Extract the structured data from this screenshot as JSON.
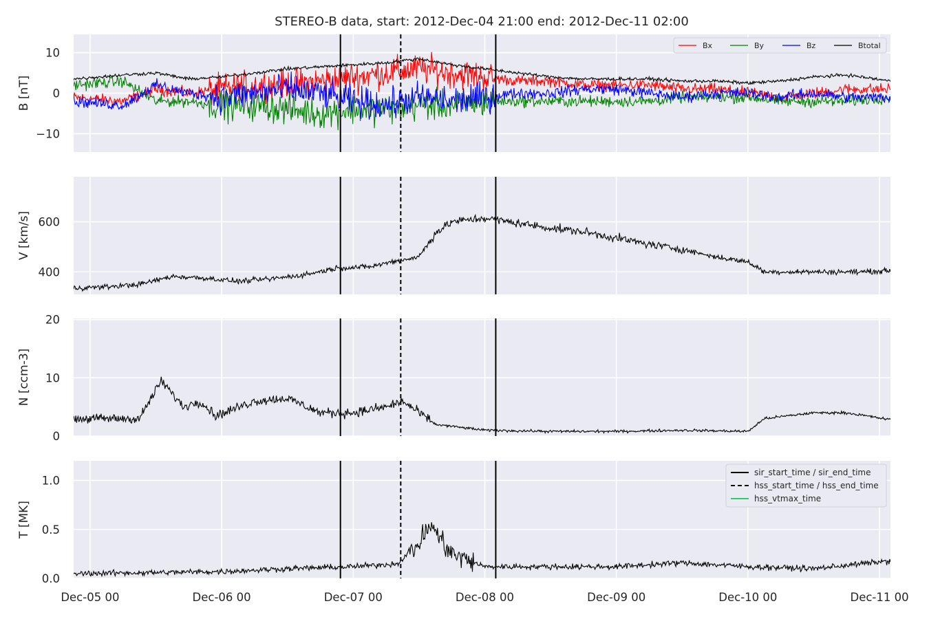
{
  "title": "STEREO-B data, start: 2012-Dec-04 21:00  end: 2012-Dec-11 02:00",
  "chart_data": [
    {
      "type": "line",
      "panel": "B",
      "ylabel": "B [nT]",
      "xlim": [
        "2012-12-04 21:00",
        "2012-12-11 02:00"
      ],
      "ylim": [
        -14.5,
        14.5
      ],
      "yticks": [
        10,
        0,
        -10
      ],
      "yticklabels": [
        "10",
        "0",
        "−10"
      ],
      "grid": true,
      "legend": "top-right",
      "series": [
        {
          "name": "Bx",
          "color": "#ff0000",
          "x": [
            "2012-12-04 21:00",
            "2012-12-05 06:00",
            "2012-12-05 12:00",
            "2012-12-05 18:00",
            "2012-12-06 00:00",
            "2012-12-06 06:00",
            "2012-12-06 12:00",
            "2012-12-06 18:00",
            "2012-12-07 00:00",
            "2012-12-07 06:00",
            "2012-12-07 12:00",
            "2012-12-07 18:00",
            "2012-12-08 00:00",
            "2012-12-08 06:00",
            "2012-12-08 12:00",
            "2012-12-08 18:00",
            "2012-12-09 00:00",
            "2012-12-09 06:00",
            "2012-12-09 12:00",
            "2012-12-09 18:00",
            "2012-12-10 00:00",
            "2012-12-10 06:00",
            "2012-12-10 12:00",
            "2012-12-10 18:00",
            "2012-12-11 02:00"
          ],
          "values": [
            -1,
            -2,
            1,
            0,
            1,
            2,
            2,
            3,
            4,
            5,
            6,
            5,
            4,
            3,
            3,
            2,
            2,
            2,
            1,
            1,
            0,
            -1,
            0,
            1,
            1
          ]
        },
        {
          "name": "By",
          "color": "#008000",
          "x": [
            "2012-12-04 21:00",
            "2012-12-05 06:00",
            "2012-12-05 12:00",
            "2012-12-05 18:00",
            "2012-12-06 00:00",
            "2012-12-06 06:00",
            "2012-12-06 12:00",
            "2012-12-06 18:00",
            "2012-12-07 00:00",
            "2012-12-07 06:00",
            "2012-12-07 12:00",
            "2012-12-07 18:00",
            "2012-12-08 00:00",
            "2012-12-08 06:00",
            "2012-12-08 12:00",
            "2012-12-08 18:00",
            "2012-12-09 00:00",
            "2012-12-09 06:00",
            "2012-12-09 12:00",
            "2012-12-09 18:00",
            "2012-12-10 00:00",
            "2012-12-10 06:00",
            "2012-12-10 12:00",
            "2012-12-10 18:00",
            "2012-12-11 02:00"
          ],
          "values": [
            2,
            3,
            -2,
            -2,
            -3,
            -3,
            -4,
            -5,
            -4,
            -4,
            -3,
            -3,
            -2,
            -2,
            -2,
            -2,
            -2,
            -2,
            -1,
            -1,
            -1,
            -2,
            -2,
            -2,
            -1
          ]
        },
        {
          "name": "Bz",
          "color": "#0000ff",
          "x": [
            "2012-12-04 21:00",
            "2012-12-05 06:00",
            "2012-12-05 12:00",
            "2012-12-05 18:00",
            "2012-12-06 00:00",
            "2012-12-06 06:00",
            "2012-12-06 12:00",
            "2012-12-06 18:00",
            "2012-12-07 00:00",
            "2012-12-07 06:00",
            "2012-12-07 12:00",
            "2012-12-07 18:00",
            "2012-12-08 00:00",
            "2012-12-08 06:00",
            "2012-12-08 12:00",
            "2012-12-08 18:00",
            "2012-12-09 00:00",
            "2012-12-09 06:00",
            "2012-12-09 12:00",
            "2012-12-09 18:00",
            "2012-12-10 00:00",
            "2012-12-10 06:00",
            "2012-12-10 12:00",
            "2012-12-10 18:00",
            "2012-12-11 02:00"
          ],
          "values": [
            -2,
            -3,
            2,
            0,
            -1,
            0,
            1,
            0,
            -2,
            -3,
            -1,
            -2,
            -1,
            0,
            0,
            1,
            1,
            0,
            -1,
            0,
            0,
            -1,
            0,
            -1,
            -1
          ]
        },
        {
          "name": "Btotal",
          "color": "#000000",
          "x": [
            "2012-12-04 21:00",
            "2012-12-05 06:00",
            "2012-12-05 12:00",
            "2012-12-05 18:00",
            "2012-12-06 00:00",
            "2012-12-06 06:00",
            "2012-12-06 12:00",
            "2012-12-06 18:00",
            "2012-12-07 00:00",
            "2012-12-07 06:00",
            "2012-12-07 12:00",
            "2012-12-07 18:00",
            "2012-12-08 00:00",
            "2012-12-08 06:00",
            "2012-12-08 12:00",
            "2012-12-08 18:00",
            "2012-12-09 00:00",
            "2012-12-09 06:00",
            "2012-12-09 12:00",
            "2012-12-09 18:00",
            "2012-12-10 00:00",
            "2012-12-10 06:00",
            "2012-12-10 12:00",
            "2012-12-10 18:00",
            "2012-12-11 02:00"
          ],
          "values": [
            3.5,
            4.5,
            5,
            3.5,
            4,
            5,
            6,
            6.5,
            7,
            7.5,
            8.5,
            7,
            6,
            5,
            4,
            3.5,
            3.5,
            3.5,
            3,
            3,
            2.5,
            3,
            4,
            4.5,
            3
          ]
        }
      ]
    },
    {
      "type": "line",
      "panel": "V",
      "ylabel": "V [km/s]",
      "xlim": [
        "2012-12-04 21:00",
        "2012-12-11 02:00"
      ],
      "ylim": [
        310,
        780
      ],
      "yticks": [
        600,
        400
      ],
      "yticklabels": [
        "600",
        "400"
      ],
      "grid": true,
      "series": [
        {
          "color": "#000000",
          "x": [
            "2012-12-04 21:00",
            "2012-12-05 03:00",
            "2012-12-05 09:00",
            "2012-12-05 15:00",
            "2012-12-05 21:00",
            "2012-12-06 03:00",
            "2012-12-06 09:00",
            "2012-12-06 15:00",
            "2012-12-06 21:00",
            "2012-12-07 03:00",
            "2012-12-07 07:00",
            "2012-12-07 12:00",
            "2012-12-07 15:00",
            "2012-12-07 18:00",
            "2012-12-08 00:00",
            "2012-12-08 06:00",
            "2012-12-08 12:00",
            "2012-12-08 18:00",
            "2012-12-09 00:00",
            "2012-12-09 06:00",
            "2012-12-09 12:00",
            "2012-12-09 18:00",
            "2012-12-10 00:00",
            "2012-12-10 03:00",
            "2012-12-10 12:00",
            "2012-12-10 21:00",
            "2012-12-11 02:00"
          ],
          "values": [
            335,
            340,
            350,
            382,
            375,
            362,
            372,
            388,
            415,
            420,
            440,
            460,
            555,
            600,
            615,
            595,
            575,
            560,
            535,
            510,
            490,
            460,
            440,
            400,
            400,
            400,
            405
          ]
        }
      ]
    },
    {
      "type": "line",
      "panel": "N",
      "ylabel": "N [ccm-3]",
      "xlim": [
        "2012-12-04 21:00",
        "2012-12-11 02:00"
      ],
      "ylim": [
        0,
        20.2
      ],
      "yticks": [
        20,
        10,
        0
      ],
      "yticklabels": [
        "20",
        "10",
        "0"
      ],
      "grid": true,
      "series": [
        {
          "color": "#000000",
          "x": [
            "2012-12-04 21:00",
            "2012-12-05 06:00",
            "2012-12-05 09:00",
            "2012-12-05 13:00",
            "2012-12-05 17:00",
            "2012-12-05 20:00",
            "2012-12-05 23:00",
            "2012-12-06 06:00",
            "2012-12-06 12:00",
            "2012-12-06 18:00",
            "2012-12-07 00:00",
            "2012-12-07 06:00",
            "2012-12-07 09:00",
            "2012-12-07 15:00",
            "2012-12-08 00:00",
            "2012-12-08 12:00",
            "2012-12-09 00:00",
            "2012-12-09 12:00",
            "2012-12-10 00:00",
            "2012-12-10 03:00",
            "2012-12-10 12:00",
            "2012-12-10 18:00",
            "2012-12-11 02:00"
          ],
          "values": [
            3,
            3,
            3,
            9.5,
            5,
            6,
            3.5,
            6,
            6.5,
            4,
            4,
            5,
            6,
            2,
            1,
            0.8,
            0.8,
            1,
            0.8,
            3,
            4,
            4,
            2.8
          ]
        }
      ]
    },
    {
      "type": "line",
      "panel": "T",
      "ylabel": "T [MK]",
      "xlim": [
        "2012-12-04 21:00",
        "2012-12-11 02:00"
      ],
      "ylim": [
        0,
        1.2
      ],
      "yticks": [
        1.0,
        0.5,
        0.0
      ],
      "yticklabels": [
        "1.0",
        "0.5",
        "0.0"
      ],
      "grid": true,
      "legend": "top-right",
      "series": [
        {
          "color": "#000000",
          "x": [
            "2012-12-04 21:00",
            "2012-12-05 12:00",
            "2012-12-06 00:00",
            "2012-12-06 12:00",
            "2012-12-07 00:00",
            "2012-12-07 08:00",
            "2012-12-07 12:00",
            "2012-12-07 14:00",
            "2012-12-07 18:00",
            "2012-12-08 00:00",
            "2012-12-08 12:00",
            "2012-12-09 00:00",
            "2012-12-09 12:00",
            "2012-12-10 00:00",
            "2012-12-10 12:00",
            "2012-12-11 02:00"
          ],
          "values": [
            0.05,
            0.06,
            0.07,
            0.1,
            0.12,
            0.15,
            0.35,
            0.55,
            0.25,
            0.12,
            0.12,
            0.12,
            0.16,
            0.12,
            0.1,
            0.18
          ]
        }
      ]
    }
  ],
  "markers": [
    {
      "name": "sir_start_time / sir_end_time",
      "style": "solid",
      "color": "#000000",
      "x": [
        "2012-12-06 21:40",
        "2012-12-08 02:00"
      ]
    },
    {
      "name": "hss_start_time / hss_end_time",
      "style": "dashed",
      "color": "#000000",
      "x": [
        "2012-12-07 08:40"
      ]
    },
    {
      "name": "hss_vtmax_time",
      "style": "solid",
      "color": "#2ecc71",
      "x": []
    }
  ],
  "xticks": {
    "labels": [
      "Dec-05 00",
      "Dec-06 00",
      "Dec-07 00",
      "Dec-08 00",
      "Dec-09 00",
      "Dec-10 00",
      "Dec-11 00"
    ],
    "values": [
      "2012-12-05 00:00",
      "2012-12-06 00:00",
      "2012-12-07 00:00",
      "2012-12-08 00:00",
      "2012-12-09 00:00",
      "2012-12-10 00:00",
      "2012-12-11 00:00"
    ]
  }
}
